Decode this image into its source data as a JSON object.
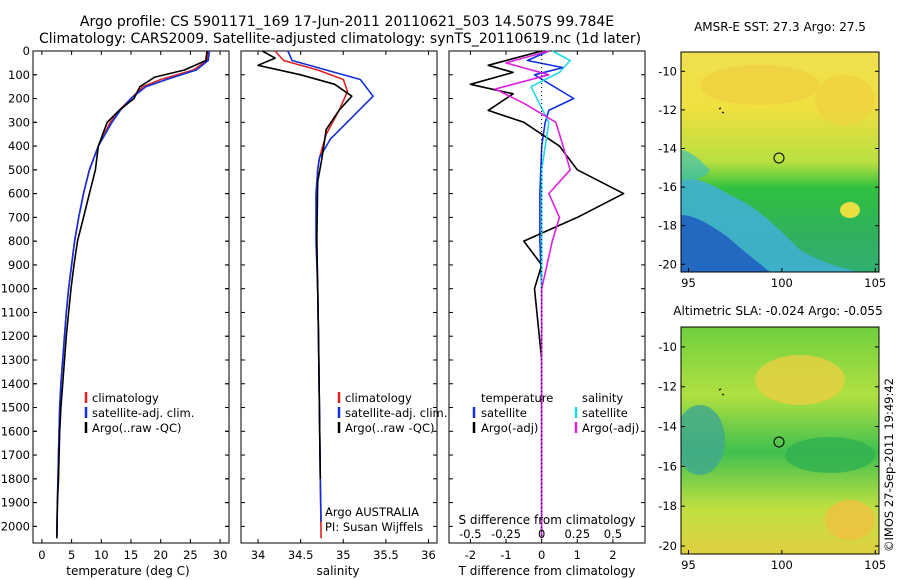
{
  "header": {
    "title_line1": "Argo profile: CS 5901171_169 17-Jun-2011 20110621_503 14.507S 99.784E",
    "title_line2": "Climatology: CARS2009. Satellite-adjusted climatology: synTS_20110619.nc (1d later)"
  },
  "colors": {
    "climatology": "#e02020",
    "satellite": "#1030e0",
    "argo": "#000000",
    "salinity_satellite": "#20d8e8",
    "salinity_argo": "#e020e0"
  },
  "depth_ticks": [
    "0",
    "100",
    "200",
    "300",
    "400",
    "500",
    "600",
    "700",
    "800",
    "900",
    "1000",
    "1100",
    "1200",
    "1300",
    "1400",
    "1500",
    "1600",
    "1700",
    "1800",
    "1900",
    "2000"
  ],
  "depth_range": [
    0,
    2070
  ],
  "temperature_panel": {
    "xlabel": "temperature (deg C)",
    "xlim": [
      -1.5,
      31.5
    ],
    "xticks": [
      "0",
      "5",
      "10",
      "15",
      "20",
      "25",
      "30"
    ],
    "legend": [
      "climatology",
      "satellite-adj. clim.",
      "Argo(..raw -QC)"
    ]
  },
  "salinity_panel": {
    "xlabel": "salinity",
    "xlim": [
      33.8,
      36.1
    ],
    "xticks": [
      "34",
      "34.5",
      "35",
      "35.5",
      "36"
    ],
    "legend": [
      "climatology",
      "satellite-adj. clim.",
      "Argo(..raw -QC)"
    ],
    "note_line1": "Argo AUSTRALIA",
    "note_line2": "PI: Susan Wijffels"
  },
  "difference_panel": {
    "xlabel": "T difference from climatology",
    "xlim": [
      -2.6,
      2.9
    ],
    "xticks": [
      "-2",
      "-1",
      "0",
      "1",
      "2"
    ],
    "top_label": "S difference from climatology",
    "top_ticks": [
      "-0.5",
      "-0.25",
      "0",
      "0.25",
      "0.5"
    ],
    "legend_temperature_header": "temperature",
    "legend_salinity_header": "salinity",
    "legend_satellite": "satellite",
    "legend_argo": "Argo(-adj)"
  },
  "maps": [
    {
      "title": "AMSR-E SST: 27.3 Argo: 27.5",
      "yticks": [
        "-10",
        "-12",
        "-14",
        "-16",
        "-18",
        "-20"
      ],
      "xticks": [
        "95",
        "100",
        "105"
      ],
      "lon_range": [
        94.6,
        105.2
      ],
      "lat_range": [
        -20.4,
        -9.0
      ],
      "float_marker": [
        99.8,
        -14.5
      ]
    },
    {
      "title": "Altimetric SLA: -0.024 Argo: -0.055",
      "yticks": [
        "-10",
        "-12",
        "-14",
        "-16",
        "-18",
        "-20"
      ],
      "xticks": [
        "95",
        "100",
        "105"
      ],
      "lon_range": [
        94.6,
        105.2
      ],
      "lat_range": [
        -20.4,
        -9.0
      ],
      "float_marker": [
        99.8,
        -14.5
      ]
    }
  ],
  "credit": "©IMOS 27-Sep-2011 19:49:42",
  "chart_data": [
    {
      "type": "line",
      "ylabel": "",
      "xlabel": "temperature (deg C)",
      "ylim": [
        2070,
        0
      ],
      "xlim": [
        -1.5,
        31.5
      ],
      "series": [
        {
          "name": "climatology",
          "x": [
            28,
            27.8,
            25.5,
            20,
            17,
            15,
            13,
            11.5,
            9.5,
            8,
            7,
            6.2,
            5.5,
            5,
            4.5,
            4.1,
            3.8,
            3.5,
            3.2,
            3,
            2.8,
            2.6,
            2.5
          ],
          "y": [
            0,
            40,
            80,
            120,
            150,
            200,
            250,
            300,
            400,
            500,
            600,
            700,
            800,
            900,
            1000,
            1100,
            1200,
            1300,
            1400,
            1500,
            1700,
            1900,
            2050
          ]
        },
        {
          "name": "satellite-adj. clim.",
          "x": [
            28.2,
            28,
            26,
            21,
            17.5,
            15,
            13.2,
            11.8,
            9.5,
            8,
            7,
            6.2,
            5.5,
            5,
            4.5,
            4.1,
            3.8,
            3.5,
            3.2,
            3,
            2.8,
            2.6,
            2.5
          ],
          "y": [
            0,
            40,
            80,
            120,
            150,
            200,
            250,
            300,
            400,
            500,
            600,
            700,
            800,
            900,
            1000,
            1100,
            1200,
            1300,
            1400,
            1500,
            1700,
            1900,
            2050
          ]
        },
        {
          "name": "Argo(..raw -QC)",
          "x": [
            27.8,
            27.6,
            24,
            19,
            16.5,
            15.5,
            13,
            11,
            9.5,
            9,
            8,
            7,
            6,
            5.4,
            4.9,
            4.5,
            4.1,
            3.8,
            3.5,
            3.2,
            3,
            2.8,
            2.6,
            2.5
          ],
          "y": [
            0,
            40,
            80,
            110,
            150,
            200,
            250,
            300,
            400,
            500,
            600,
            700,
            800,
            900,
            1000,
            1100,
            1200,
            1300,
            1400,
            1500,
            1600,
            1800,
            1900,
            2050
          ]
        }
      ]
    },
    {
      "type": "line",
      "xlabel": "salinity",
      "ylim": [
        2070,
        0
      ],
      "xlim": [
        33.8,
        36.1
      ],
      "series": [
        {
          "name": "climatology",
          "x": [
            34.2,
            34.3,
            34.7,
            35.0,
            35.05,
            34.95,
            34.8,
            34.72,
            34.7,
            34.69,
            34.69,
            34.7,
            34.71,
            34.72,
            34.73,
            34.74
          ],
          "y": [
            0,
            40,
            80,
            120,
            170,
            250,
            350,
            450,
            500,
            600,
            800,
            1000,
            1200,
            1500,
            1800,
            2050
          ]
        },
        {
          "name": "satellite-adj. clim.",
          "x": [
            34.35,
            34.4,
            34.8,
            35.2,
            35.35,
            35.1,
            34.85,
            34.72,
            34.7,
            34.68,
            34.68,
            34.7,
            34.71,
            34.72,
            34.73,
            34.74
          ],
          "y": [
            0,
            40,
            80,
            120,
            190,
            280,
            370,
            450,
            500,
            600,
            800,
            1000,
            1200,
            1500,
            1800,
            1980
          ]
        },
        {
          "name": "Argo(..raw -QC)",
          "x": [
            34.05,
            34.2,
            34.0,
            34.5,
            34.9,
            35.1,
            34.95,
            34.8,
            34.75,
            34.7,
            34.69,
            34.7,
            34.71,
            34.72,
            34.73
          ],
          "y": [
            0,
            30,
            60,
            100,
            140,
            190,
            250,
            330,
            450,
            550,
            800,
            1000,
            1200,
            1500,
            1800
          ]
        }
      ]
    },
    {
      "type": "line",
      "xlabel": "T difference from climatology",
      "ylim": [
        2070,
        0
      ],
      "xlim": [
        -2.6,
        2.9
      ],
      "series": [
        {
          "name": "satellite",
          "x": [
            0.2,
            -0.4,
            0.6,
            -0.2,
            0.9,
            0.2,
            0.1,
            0,
            -0.05,
            -0.05,
            0,
            0,
            0,
            0,
            0
          ],
          "y": [
            0,
            40,
            70,
            100,
            200,
            250,
            300,
            400,
            600,
            800,
            1000,
            1300,
            1600,
            1900,
            2050
          ]
        },
        {
          "name": "Argo(-adj)",
          "x": [
            0,
            -1.5,
            -0.8,
            -2,
            -0.8,
            -1.5,
            -0.5,
            0.5,
            1.0,
            2.3,
            1.0,
            -0.5,
            0,
            -0.2,
            0,
            0
          ],
          "y": [
            0,
            60,
            90,
            140,
            180,
            250,
            300,
            400,
            500,
            600,
            700,
            800,
            900,
            1000,
            1300,
            2050
          ]
        },
        {
          "name": "salinity satellite",
          "x": [
            0.3,
            0.8,
            0.5,
            -0.3,
            0.2,
            0,
            0,
            0,
            0,
            0
          ],
          "y": [
            0,
            40,
            90,
            150,
            300,
            500,
            800,
            1200,
            1600,
            2050
          ]
        },
        {
          "name": "salinity Argo(-adj)",
          "x": [
            0.2,
            -1.0,
            0.2,
            -1.3,
            -0.5,
            0.4,
            0.8,
            0.2,
            0.5,
            0.3,
            0,
            0
          ],
          "y": [
            0,
            50,
            100,
            160,
            220,
            300,
            500,
            600,
            700,
            800,
            1000,
            2050
          ]
        }
      ]
    }
  ]
}
